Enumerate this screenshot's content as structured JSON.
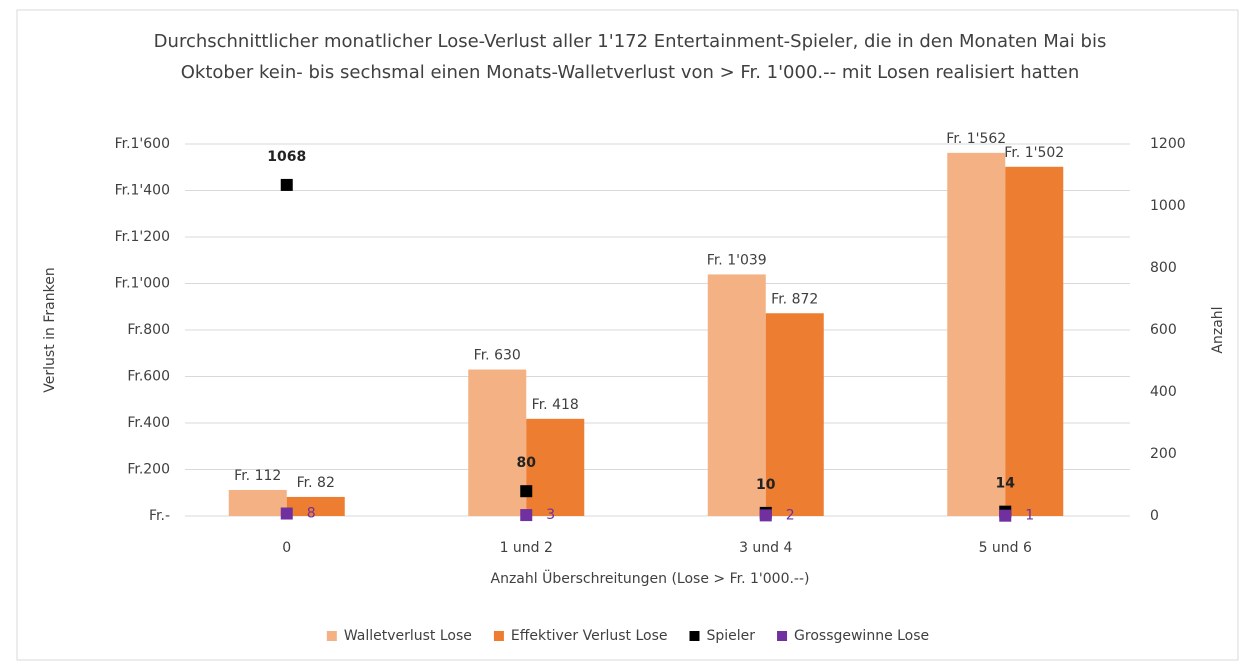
{
  "chart_data": {
    "type": "bar",
    "title": "Durchschnittlicher monatlicher Lose-Verlust aller 1'172 Entertainment-Spieler, die in den Monaten Mai bis Oktober kein- bis sechsmal einen Monats-Walletverlust von > Fr. 1'000.-- mit Losen realisiert hatten",
    "x_label": "Anzahl Überschreitungen (Lose > Fr. 1'000.--)",
    "y_label": "Verlust in Franken",
    "y2_label": "Anzahl",
    "categories": [
      "0",
      "1 und 2",
      "3 und 4",
      "5 und 6"
    ],
    "series": [
      {
        "name": "Walletverlust Lose",
        "color": "#f4b183",
        "type": "bar",
        "values": [
          112,
          630,
          1039,
          1562
        ],
        "value_labels": [
          "Fr. 112",
          "Fr. 630",
          "Fr. 1'039",
          "Fr. 1'562"
        ]
      },
      {
        "name": "Effektiver Verlust Lose",
        "color": "#ed7d31",
        "type": "bar",
        "values": [
          82,
          418,
          872,
          1502
        ],
        "value_labels": [
          "Fr. 82",
          "Fr. 418",
          "Fr. 872",
          "Fr. 1'502"
        ]
      },
      {
        "name": "Spieler",
        "color": "#000000",
        "type": "scatter",
        "axis": "y2",
        "values": [
          1068,
          80,
          10,
          14
        ]
      },
      {
        "name": "Grossgewinne Lose",
        "color": "#7030a0",
        "type": "scatter",
        "axis": "y2",
        "values": [
          8,
          3,
          2,
          1
        ]
      }
    ],
    "ylim": [
      0,
      1600
    ],
    "yticks": [
      {
        "value": 0,
        "label": "Fr.-"
      },
      {
        "value": 200,
        "label": "Fr.200"
      },
      {
        "value": 400,
        "label": "Fr.400"
      },
      {
        "value": 600,
        "label": "Fr.600"
      },
      {
        "value": 800,
        "label": "Fr.800"
      },
      {
        "value": 1000,
        "label": "Fr.1'000"
      },
      {
        "value": 1200,
        "label": "Fr.1'200"
      },
      {
        "value": 1400,
        "label": "Fr.1'400"
      },
      {
        "value": 1600,
        "label": "Fr.1'600"
      }
    ],
    "y2lim": [
      0,
      1200
    ],
    "y2ticks": [
      0,
      200,
      400,
      600,
      800,
      1000,
      1200
    ],
    "grid": true,
    "legend": "bottom"
  }
}
